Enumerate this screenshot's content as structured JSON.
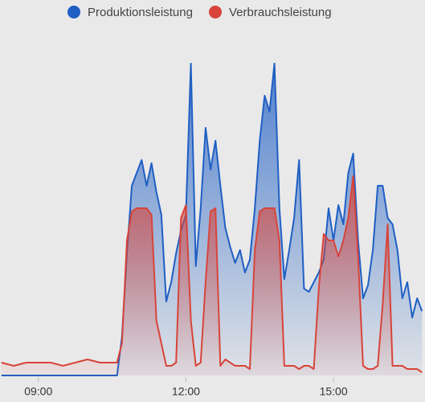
{
  "chart_data": {
    "type": "area",
    "legend": "top",
    "xlim": [
      8.22,
      16.86
    ],
    "ylim": [
      0,
      100
    ],
    "xticks": [
      {
        "value": 9,
        "label": "09:00"
      },
      {
        "value": 12,
        "label": "12:00"
      },
      {
        "value": 15,
        "label": "15:00"
      }
    ],
    "x": [
      8.25,
      8.5,
      8.75,
      9,
      9.25,
      9.5,
      9.75,
      10,
      10.25,
      10.5,
      10.6,
      10.7,
      10.8,
      10.9,
      11,
      11.1,
      11.2,
      11.3,
      11.4,
      11.5,
      11.6,
      11.7,
      11.8,
      11.9,
      12,
      12.1,
      12.2,
      12.3,
      12.4,
      12.5,
      12.6,
      12.7,
      12.8,
      12.9,
      13,
      13.1,
      13.2,
      13.3,
      13.4,
      13.5,
      13.6,
      13.7,
      13.8,
      13.9,
      14,
      14.1,
      14.2,
      14.3,
      14.4,
      14.5,
      14.6,
      14.7,
      14.8,
      14.9,
      15,
      15.1,
      15.2,
      15.3,
      15.4,
      15.5,
      15.6,
      15.7,
      15.8,
      15.9,
      16,
      16.1,
      16.2,
      16.3,
      16.4,
      16.5,
      16.6,
      16.7,
      16.8
    ],
    "series": [
      {
        "name": "Produktionsleistung",
        "color": "#1f5fc4",
        "values": [
          0,
          0,
          0,
          0,
          0,
          0,
          0,
          0,
          0,
          0,
          0,
          12,
          38,
          59,
          63,
          67,
          59,
          66,
          57,
          50,
          23,
          29,
          38,
          45,
          50,
          97,
          34,
          52,
          77,
          64,
          73,
          59,
          46,
          40,
          35,
          39,
          32,
          36,
          52,
          73,
          87,
          82,
          97,
          52,
          30,
          39,
          49,
          67,
          27,
          26,
          29,
          32,
          36,
          52,
          42,
          53,
          47,
          63,
          69,
          42,
          24,
          28,
          39,
          59,
          59,
          49,
          47,
          39,
          24,
          29,
          18,
          24,
          20
        ]
      },
      {
        "name": "Verbrauchsleistung",
        "color": "#d8443a",
        "values": [
          4,
          3,
          4,
          4,
          4,
          3,
          4,
          5,
          4,
          4,
          4,
          10,
          42,
          51,
          52,
          52,
          52,
          50,
          17,
          10,
          3,
          3,
          4,
          49,
          53,
          17,
          3,
          4,
          29,
          51,
          52,
          3,
          5,
          4,
          3,
          3,
          3,
          2,
          39,
          51,
          52,
          52,
          52,
          42,
          3,
          3,
          3,
          2,
          3,
          3,
          2,
          27,
          44,
          42,
          42,
          37,
          42,
          49,
          62,
          37,
          3,
          2,
          2,
          3,
          22,
          47,
          3,
          3,
          3,
          2,
          2,
          2,
          1
        ]
      }
    ]
  }
}
